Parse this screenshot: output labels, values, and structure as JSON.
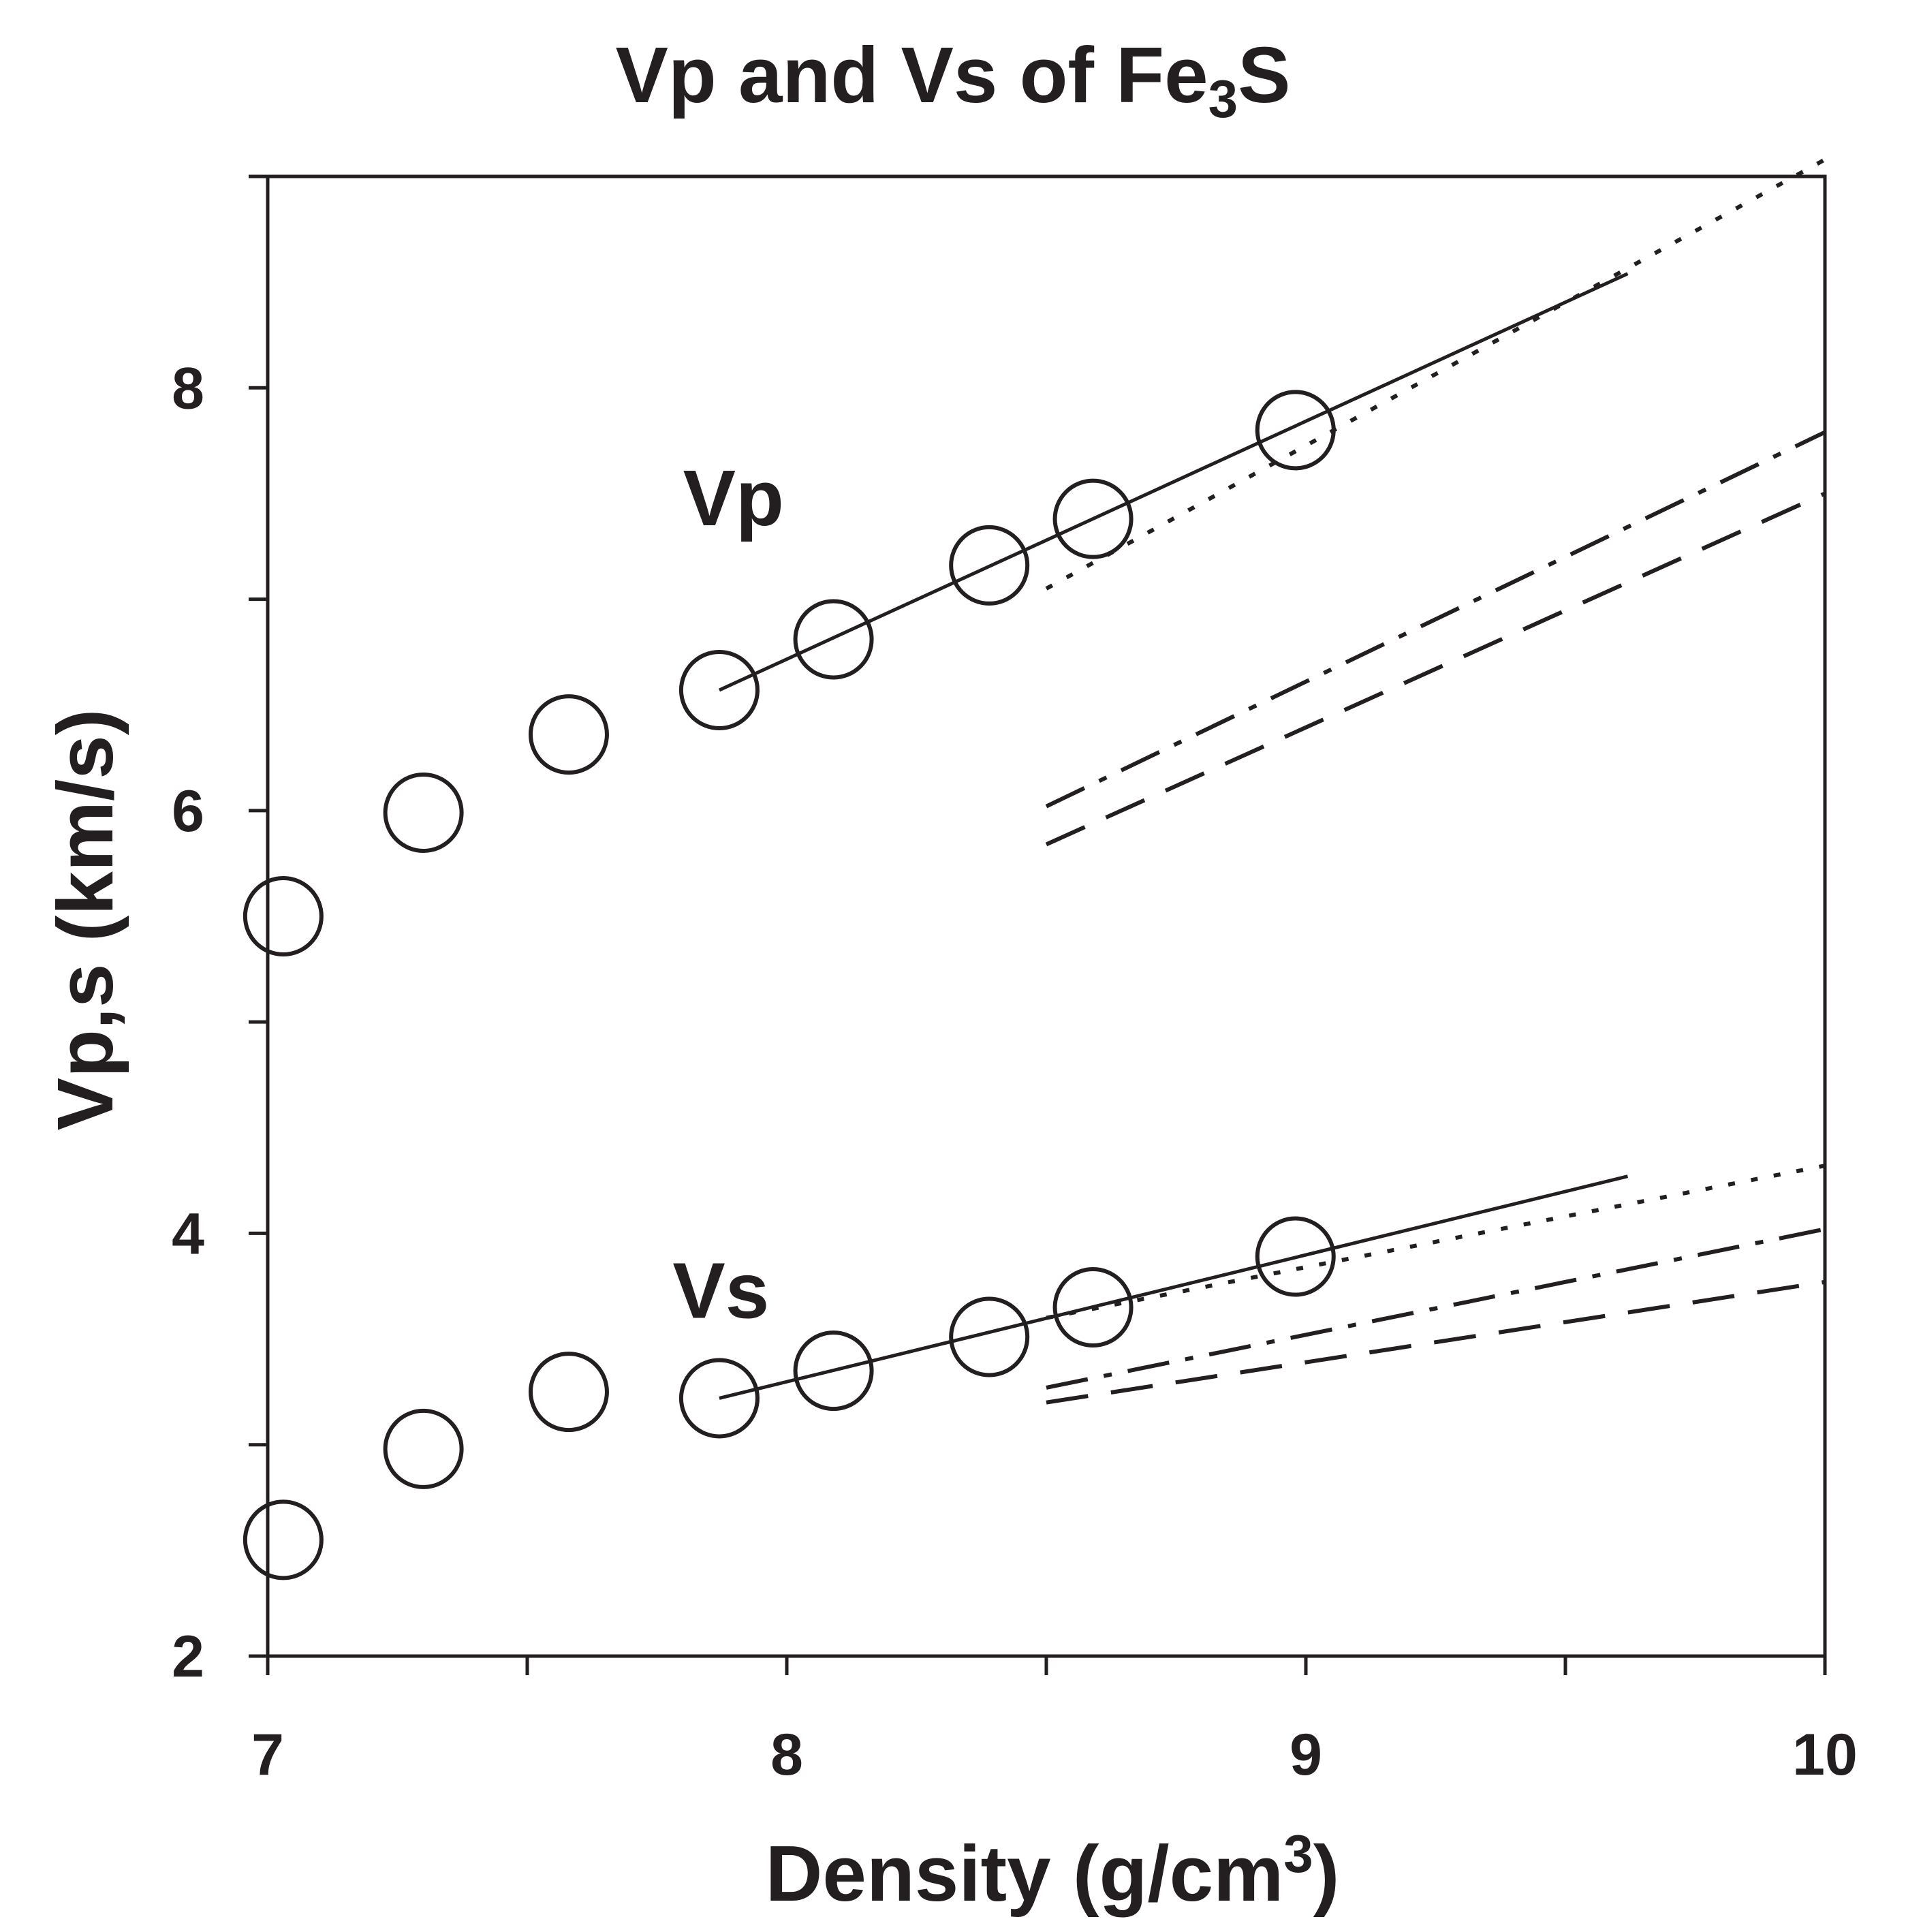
{
  "chart_data": {
    "type": "scatter",
    "title": {
      "main": "Vp and Vs of Fe",
      "sub": "3",
      "tail": "S"
    },
    "xlabel": {
      "main": "Density (g/cm",
      "sup": "3",
      "tail": ")"
    },
    "ylabel": "Vp,s (km/s)",
    "xlim": [
      7,
      10
    ],
    "ylim": [
      2,
      9
    ],
    "xticks": [
      7,
      8,
      9,
      10
    ],
    "xticks_minor": [
      7.5,
      8.5,
      9.5
    ],
    "yticks": [
      2,
      4,
      6,
      8
    ],
    "yticks_minor": [
      3,
      5,
      7,
      9
    ],
    "grid": false,
    "annotations": [
      {
        "text": "Vp",
        "x": 7.8,
        "y": 7.35
      },
      {
        "text": "Vs",
        "x": 7.78,
        "y": 3.6
      }
    ],
    "series": [
      {
        "marker": "open-circle",
        "x": [
          7.03,
          7.3,
          7.58,
          7.87,
          8.09,
          8.39,
          8.59,
          8.98
        ],
        "y": [
          5.5,
          5.99,
          6.36,
          6.57,
          6.81,
          7.16,
          7.38,
          7.8
        ]
      },
      {
        "marker": "open-circle",
        "x": [
          7.03,
          7.3,
          7.58,
          7.87,
          8.09,
          8.39,
          8.59,
          8.98
        ],
        "y": [
          2.55,
          2.98,
          3.25,
          3.22,
          3.35,
          3.51,
          3.65,
          3.89
        ]
      },
      {
        "line": "solid",
        "x": [
          7.87,
          9.62
        ],
        "y": [
          6.57,
          8.54
        ]
      },
      {
        "line": "dotted",
        "x": [
          8.5,
          10.0
        ],
        "y": [
          7.05,
          9.08
        ]
      },
      {
        "line": "dashdot",
        "x": [
          8.5,
          10.0
        ],
        "y": [
          6.02,
          7.79
        ]
      },
      {
        "line": "dashed",
        "x": [
          8.5,
          10.0
        ],
        "y": [
          5.84,
          7.5
        ]
      },
      {
        "line": "solid",
        "x": [
          7.87,
          9.62
        ],
        "y": [
          3.22,
          4.27
        ]
      },
      {
        "line": "dotted",
        "x": [
          8.5,
          10.0
        ],
        "y": [
          3.6,
          4.32
        ]
      },
      {
        "line": "dashdot",
        "x": [
          8.5,
          10.0
        ],
        "y": [
          3.27,
          4.02
        ]
      },
      {
        "line": "dashed",
        "x": [
          8.5,
          10.0
        ],
        "y": [
          3.2,
          3.77
        ]
      }
    ]
  }
}
